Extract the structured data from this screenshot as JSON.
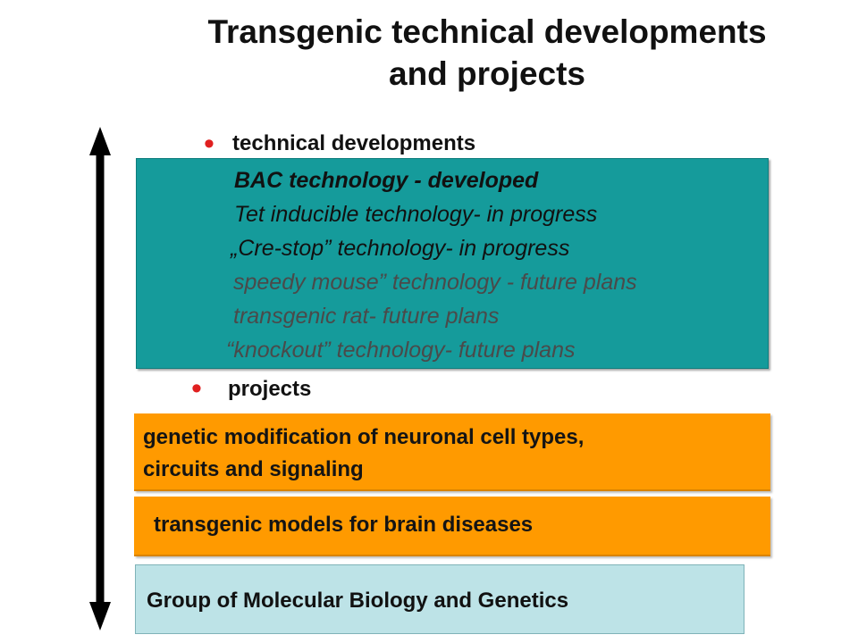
{
  "title": {
    "line1": "Transgenic technical developments",
    "line2": "and projects"
  },
  "sections": {
    "technical_heading": "technical developments",
    "projects_heading": "projects"
  },
  "technical_items": [
    {
      "text": "BAC technology - developed",
      "color": "#111111",
      "bold": true
    },
    {
      "text": "Tet inducible technology- in progress",
      "color": "#111111"
    },
    {
      "text": "„Cre-stop” technology- in progress",
      "color": "#111111"
    },
    {
      "text": "speedy mouse” technology - future plans",
      "color": "#4a4a4a"
    },
    {
      "text": "transgenic rat- future plans",
      "color": "#4a4a4a"
    },
    {
      "text": "“knockout” technology- future plans",
      "color": "#4a4a4a"
    }
  ],
  "projects": {
    "item1_line1": "genetic modification of neuronal cell types,",
    "item1_line2": "circuits and signaling",
    "item2": "transgenic models for brain diseases"
  },
  "footer": {
    "group": "Group of Molecular Biology and Genetics"
  },
  "colors": {
    "bullet": "#e02020",
    "teal": "#159b9b",
    "orange": "#ff9a00",
    "light_blue": "#bde3e7"
  }
}
